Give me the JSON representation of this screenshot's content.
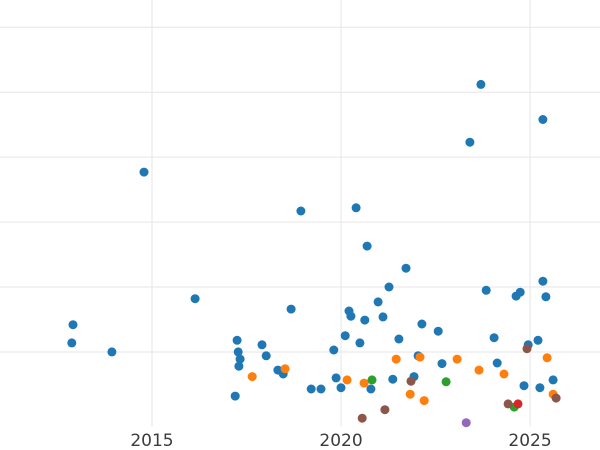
{
  "chart_data": {
    "type": "scatter",
    "title": "",
    "xlabel": "",
    "ylabel": "",
    "grid": true,
    "legend": "none",
    "background_color": "#ffffff",
    "gridline_color": "#e6e6e6",
    "tick_label_color": "#3b3b3b",
    "marker_radius": 4.5,
    "xlim": [
      2010.98,
      2026.85
    ],
    "ylim": [
      -0.51,
      6.42
    ],
    "x_ticks": [
      {
        "label": "2015",
        "value": 2015
      },
      {
        "label": "2020",
        "value": 2020
      },
      {
        "label": "2025",
        "value": 2025
      }
    ],
    "y_gridlines": [
      1,
      2,
      3,
      4,
      5,
      6
    ],
    "series": [
      {
        "name": "blue",
        "color": "#1f77b4",
        "points": [
          [
            2012.88,
            1.14
          ],
          [
            2012.91,
            1.42
          ],
          [
            2013.94,
            1.0
          ],
          [
            2014.79,
            3.77
          ],
          [
            2016.14,
            1.82
          ],
          [
            2017.2,
            0.32
          ],
          [
            2017.25,
            1.18
          ],
          [
            2017.28,
            1.0
          ],
          [
            2017.3,
            0.78
          ],
          [
            2017.33,
            0.89
          ],
          [
            2017.91,
            1.11
          ],
          [
            2018.02,
            0.94
          ],
          [
            2018.33,
            0.72
          ],
          [
            2018.47,
            0.66
          ],
          [
            2018.68,
            1.66
          ],
          [
            2018.94,
            3.17
          ],
          [
            2019.21,
            0.43
          ],
          [
            2019.47,
            0.43
          ],
          [
            2019.81,
            1.03
          ],
          [
            2019.87,
            0.6
          ],
          [
            2020.0,
            0.45
          ],
          [
            2020.11,
            1.25
          ],
          [
            2020.21,
            1.63
          ],
          [
            2020.26,
            1.55
          ],
          [
            2020.4,
            3.22
          ],
          [
            2020.5,
            1.14
          ],
          [
            2020.63,
            1.49
          ],
          [
            2020.69,
            2.63
          ],
          [
            2020.79,
            0.43
          ],
          [
            2020.98,
            1.77
          ],
          [
            2021.11,
            1.54
          ],
          [
            2021.27,
            2.0
          ],
          [
            2021.37,
            0.58
          ],
          [
            2021.53,
            1.2
          ],
          [
            2021.72,
            2.29
          ],
          [
            2021.93,
            0.62
          ],
          [
            2022.04,
            0.94
          ],
          [
            2022.14,
            1.43
          ],
          [
            2022.57,
            1.32
          ],
          [
            2022.67,
            0.82
          ],
          [
            2023.41,
            4.23
          ],
          [
            2023.7,
            5.12
          ],
          [
            2023.84,
            1.95
          ],
          [
            2024.05,
            1.22
          ],
          [
            2024.13,
            0.83
          ],
          [
            2024.63,
            1.86
          ],
          [
            2024.74,
            1.92
          ],
          [
            2024.84,
            0.48
          ],
          [
            2024.95,
            1.11
          ],
          [
            2025.21,
            1.18
          ],
          [
            2025.26,
            0.45
          ],
          [
            2025.34,
            4.58
          ],
          [
            2025.34,
            2.09
          ],
          [
            2025.42,
            1.85
          ],
          [
            2025.61,
            0.57
          ]
        ]
      },
      {
        "name": "orange",
        "color": "#ff7f0e",
        "points": [
          [
            2017.65,
            0.62
          ],
          [
            2018.52,
            0.74
          ],
          [
            2020.16,
            0.57
          ],
          [
            2020.61,
            0.52
          ],
          [
            2021.46,
            0.89
          ],
          [
            2021.83,
            0.35
          ],
          [
            2022.09,
            0.92
          ],
          [
            2022.2,
            0.25
          ],
          [
            2023.07,
            0.89
          ],
          [
            2023.65,
            0.72
          ],
          [
            2024.31,
            0.66
          ],
          [
            2025.45,
            0.91
          ],
          [
            2025.61,
            0.35
          ]
        ]
      },
      {
        "name": "green",
        "color": "#2ca02c",
        "points": [
          [
            2020.82,
            0.57
          ],
          [
            2022.78,
            0.54
          ],
          [
            2024.58,
            0.15
          ]
        ]
      },
      {
        "name": "brown",
        "color": "#8c564b",
        "points": [
          [
            2020.56,
            -0.02
          ],
          [
            2021.16,
            0.11
          ],
          [
            2021.85,
            0.55
          ],
          [
            2024.42,
            0.2
          ],
          [
            2024.92,
            1.05
          ],
          [
            2025.69,
            0.29
          ]
        ]
      },
      {
        "name": "red",
        "color": "#d62728",
        "points": [
          [
            2024.68,
            0.2
          ]
        ]
      },
      {
        "name": "purple",
        "color": "#9467bd",
        "points": [
          [
            2023.31,
            -0.09
          ]
        ]
      }
    ]
  }
}
